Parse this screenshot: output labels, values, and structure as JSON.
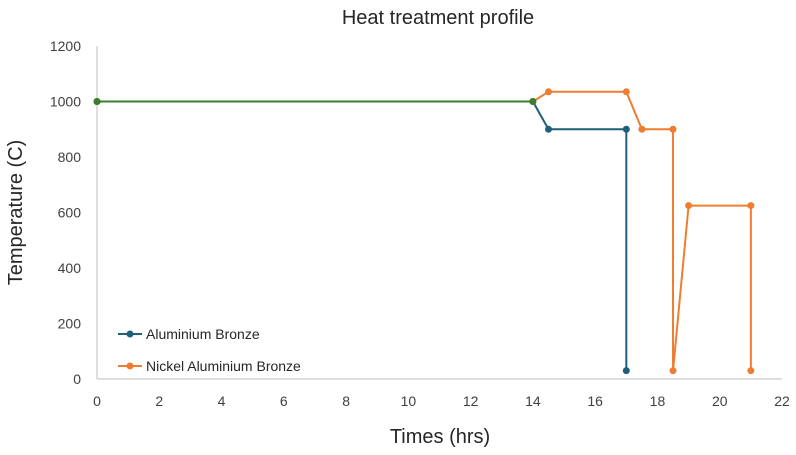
{
  "chart_data": {
    "type": "line",
    "title": "Heat treatment profile",
    "xlabel": "Times (hrs)",
    "ylabel": "Temperature (C)",
    "xlim": [
      0,
      22
    ],
    "ylim": [
      0,
      1200
    ],
    "xticks": [
      0,
      2,
      4,
      6,
      8,
      10,
      12,
      14,
      16,
      18,
      20,
      22
    ],
    "yticks": [
      0,
      200,
      400,
      600,
      800,
      1000,
      1200
    ],
    "grid": false,
    "legend_position": "bottom-left",
    "series": [
      {
        "name": "Aluminium Bronze",
        "color": "#1f5f7a",
        "points": [
          [
            0,
            1000
          ],
          [
            14,
            1000
          ],
          [
            14.5,
            900
          ],
          [
            17,
            900
          ],
          [
            17,
            30
          ]
        ]
      },
      {
        "name": "Nickel Aluminium Bronze",
        "color": "#ee7d31",
        "points": [
          [
            0,
            1000
          ],
          [
            14,
            1000
          ],
          [
            14.5,
            1035
          ],
          [
            17,
            1035
          ],
          [
            17.5,
            900
          ],
          [
            18.5,
            900
          ],
          [
            18.5,
            30
          ],
          [
            19,
            625
          ],
          [
            21,
            625
          ],
          [
            21,
            30
          ]
        ]
      }
    ],
    "overlap_color": "#3a7d2c"
  }
}
